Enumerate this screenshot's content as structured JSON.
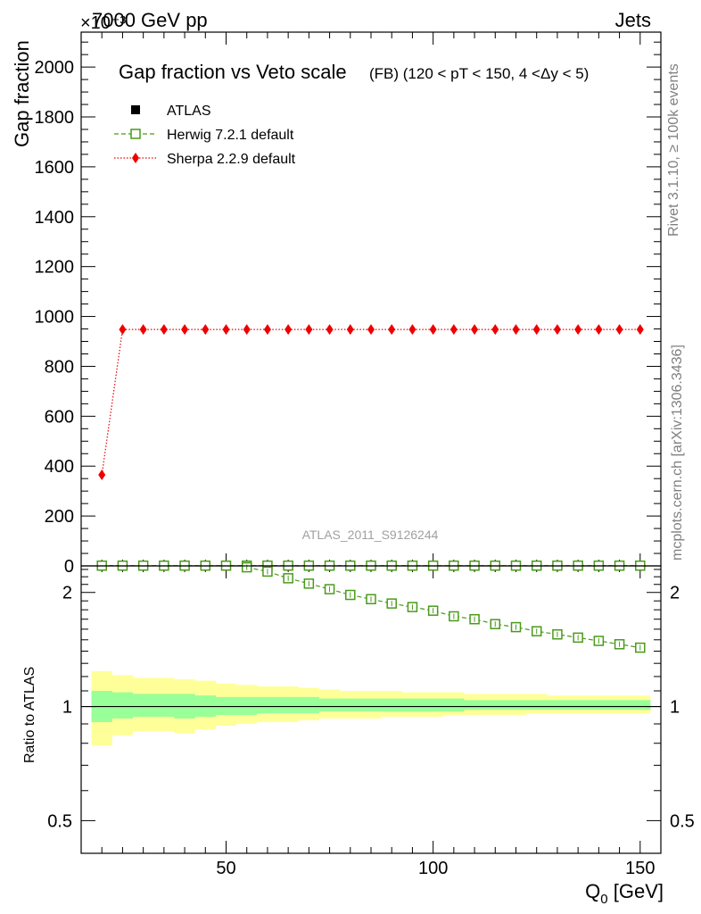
{
  "header": {
    "energy_label": "7000 GeV pp",
    "process_label": "Jets",
    "exponent_label": "×10⁻³"
  },
  "side_labels": {
    "rivet": "Rivet 3.1.10, ≥ 100k events",
    "mcplots": "mcplots.cern.ch [arXiv:1306.3436]"
  },
  "chart_data": {
    "type": "line",
    "title": "Gap fraction vs Veto scale",
    "subtitle": "(FB) (120 < pT < 150, 4 <Δy < 5)",
    "analysis_id": "ATLAS_2011_S9126244",
    "xlabel": "Q0 [GeV]",
    "ylabel": "Gap fraction",
    "ratio_ylabel": "Ratio to ATLAS",
    "xlim": [
      15,
      155
    ],
    "ylim": [
      0,
      2140
    ],
    "yticks": [
      0,
      200,
      400,
      600,
      800,
      1000,
      1200,
      1400,
      1600,
      1800,
      2000
    ],
    "ratio_ylim": [
      0.41,
      2.35
    ],
    "ratio_log_scale": true,
    "ratio_yticks": [
      0.5,
      1,
      2
    ],
    "xticks": [
      50,
      100,
      150
    ],
    "legend": {
      "placement": "top-left"
    },
    "x": [
      20,
      25,
      30,
      35,
      40,
      45,
      50,
      55,
      60,
      65,
      70,
      75,
      80,
      85,
      90,
      95,
      100,
      105,
      110,
      115,
      120,
      125,
      130,
      135,
      140,
      145,
      150
    ],
    "series": [
      {
        "name": "ATLAS",
        "color": "#000000",
        "marker": "square",
        "values": [
          1,
          1,
          1,
          1,
          1,
          1,
          1,
          1,
          1,
          1,
          1,
          1,
          1,
          1,
          1,
          1,
          1,
          1,
          1,
          1,
          1,
          1,
          1,
          1,
          1,
          1,
          1
        ]
      },
      {
        "name": "Herwig 7.2.1 default",
        "color": "#4a9a1a",
        "marker": "open-square",
        "line": "dashed",
        "values": [
          1,
          1,
          1,
          1,
          1,
          1,
          1,
          1,
          1,
          1,
          1,
          1,
          1,
          1,
          1,
          1,
          1,
          1,
          1,
          1,
          1,
          1,
          1,
          1,
          1,
          1,
          1
        ]
      },
      {
        "name": "Sherpa 2.2.9 default",
        "color": "#ee0000",
        "marker": "diamond",
        "line": "dotted",
        "values": [
          365,
          948,
          948,
          948,
          948,
          948,
          948,
          948,
          948,
          948,
          948,
          948,
          948,
          948,
          948,
          948,
          948,
          948,
          948,
          948,
          948,
          948,
          948,
          948,
          948,
          948,
          948
        ]
      }
    ],
    "ratio_series": [
      {
        "name": "Herwig 7.2.1 default",
        "color": "#4a9a1a",
        "x": [
          55,
          60,
          65,
          70,
          75,
          80,
          85,
          90,
          95,
          100,
          105,
          110,
          115,
          120,
          125,
          130,
          135,
          140,
          145,
          150
        ],
        "values": [
          2.33,
          2.27,
          2.18,
          2.11,
          2.04,
          1.97,
          1.92,
          1.87,
          1.83,
          1.79,
          1.73,
          1.7,
          1.65,
          1.62,
          1.58,
          1.55,
          1.52,
          1.49,
          1.46,
          1.43
        ]
      }
    ],
    "uncertainty_bands": {
      "x_edges": [
        17.5,
        22.5,
        27.5,
        32.5,
        37.5,
        42.5,
        47.5,
        52.5,
        57.5,
        62.5,
        67.5,
        72.5,
        77.5,
        82.5,
        87.5,
        92.5,
        97.5,
        102.5,
        107.5,
        112.5,
        117.5,
        122.5,
        127.5,
        132.5,
        137.5,
        142.5,
        147.5,
        152.5
      ],
      "inner_color": "#99ff99",
      "outer_color": "#ffff99",
      "inner": [
        [
          0.91,
          1.1
        ],
        [
          0.93,
          1.09
        ],
        [
          0.94,
          1.08
        ],
        [
          0.94,
          1.08
        ],
        [
          0.93,
          1.08
        ],
        [
          0.94,
          1.07
        ],
        [
          0.95,
          1.06
        ],
        [
          0.95,
          1.06
        ],
        [
          0.96,
          1.06
        ],
        [
          0.96,
          1.06
        ],
        [
          0.96,
          1.06
        ],
        [
          0.97,
          1.05
        ],
        [
          0.97,
          1.05
        ],
        [
          0.97,
          1.05
        ],
        [
          0.97,
          1.05
        ],
        [
          0.97,
          1.05
        ],
        [
          0.97,
          1.05
        ],
        [
          0.97,
          1.05
        ],
        [
          0.98,
          1.04
        ],
        [
          0.98,
          1.04
        ],
        [
          0.98,
          1.04
        ],
        [
          0.98,
          1.04
        ],
        [
          0.98,
          1.04
        ],
        [
          0.98,
          1.04
        ],
        [
          0.98,
          1.04
        ],
        [
          0.98,
          1.04
        ],
        [
          0.98,
          1.04
        ]
      ],
      "outer": [
        [
          0.79,
          1.24
        ],
        [
          0.84,
          1.21
        ],
        [
          0.86,
          1.19
        ],
        [
          0.86,
          1.19
        ],
        [
          0.85,
          1.18
        ],
        [
          0.87,
          1.17
        ],
        [
          0.89,
          1.15
        ],
        [
          0.9,
          1.14
        ],
        [
          0.91,
          1.13
        ],
        [
          0.91,
          1.13
        ],
        [
          0.92,
          1.12
        ],
        [
          0.93,
          1.11
        ],
        [
          0.93,
          1.1
        ],
        [
          0.93,
          1.1
        ],
        [
          0.94,
          1.1
        ],
        [
          0.94,
          1.09
        ],
        [
          0.94,
          1.09
        ],
        [
          0.95,
          1.09
        ],
        [
          0.95,
          1.08
        ],
        [
          0.95,
          1.08
        ],
        [
          0.95,
          1.08
        ],
        [
          0.96,
          1.08
        ],
        [
          0.96,
          1.07
        ],
        [
          0.96,
          1.07
        ],
        [
          0.96,
          1.07
        ],
        [
          0.96,
          1.07
        ],
        [
          0.96,
          1.07
        ]
      ]
    }
  }
}
